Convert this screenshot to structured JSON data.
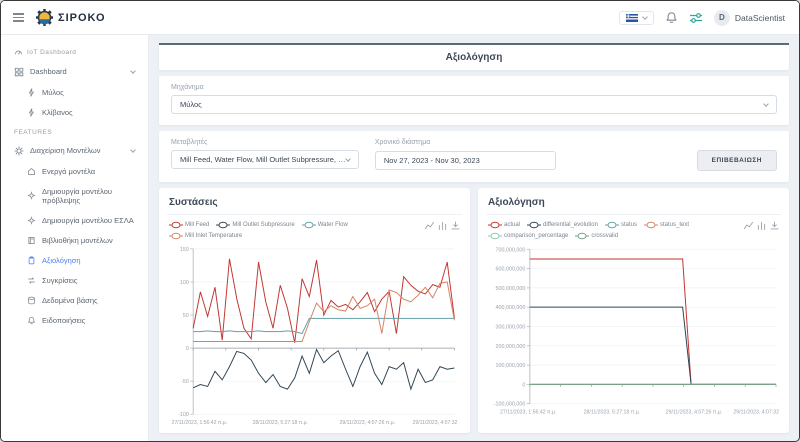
{
  "topbar": {
    "logo_text": "ΣΙΡΟΚΟ",
    "username": "DataScientist",
    "avatar_initial": "D"
  },
  "icons": {
    "topbar": [
      "menu-icon",
      "flag-icon",
      "chevron-down-icon",
      "bell-icon",
      "sliders-icon"
    ],
    "chart_toolbox": [
      "line-chart-icon",
      "bar-chart-icon",
      "download-icon"
    ]
  },
  "sidebar": {
    "section1": "IoT Dashboard",
    "dashboard_label": "Dashboard",
    "dashboard_children": [
      {
        "label": "Μύλος"
      },
      {
        "label": "Κλίβανος"
      }
    ],
    "section2": "FEATURES",
    "models_label": "Διαχείριση Μοντέλων",
    "model_children": [
      {
        "label": "Ενεργά μοντέλα"
      },
      {
        "label": "Δημιουργία μοντέλου πρόβλεψης"
      },
      {
        "label": "Δημιουργία μοντέλου ΕΣΛΑ"
      },
      {
        "label": "Βιβλιοθήκη μοντέλων"
      },
      {
        "label": "Αξιολόγηση"
      },
      {
        "label": "Συγκρίσεις"
      },
      {
        "label": "Δεδομένα βάσης"
      },
      {
        "label": "Ειδοποιήσεις"
      }
    ]
  },
  "form": {
    "title": "Αξιολόγηση",
    "machine_label": "Μηχάνημα",
    "machine_value": "Μύλος",
    "variables_label": "Μεταβλητές",
    "variables_value": "Mill Feed, Water Flow, Mill Outlet Subpressure, Mill Inlet Temperatu...",
    "period_label": "Χρονικό διάστημα",
    "period_value": "Nov 27, 2023 - Nov 30, 2023",
    "confirm_button": "ΕΠΙΒΕΒΑΙΩΣΗ"
  },
  "chart_data": [
    {
      "type": "line",
      "title": "Συστάσεις",
      "xlabel": "",
      "ylabel": "",
      "ylim": [
        -100,
        150
      ],
      "yticks": [
        150,
        100,
        50,
        0,
        -50,
        -100
      ],
      "grid": true,
      "legend_position": "top",
      "x_labels": [
        "27/11/2023, 1:56:42 π.μ.",
        "28/11/2023, 5:27:18 π.μ.",
        "29/11/2023, 4:07:26 π.μ.",
        "29/11/2023, 4:07:32"
      ],
      "series": [
        {
          "name": "Mill Feed",
          "color": "#c23531",
          "values": [
            30,
            85,
            48,
            92,
            12,
            135,
            75,
            30,
            14,
            130,
            70,
            30,
            95,
            60,
            8,
            105,
            78,
            133,
            50,
            72,
            62,
            66,
            58,
            70,
            84,
            55,
            74,
            86,
            22,
            108,
            95,
            86,
            82,
            96,
            92,
            130,
            45
          ]
        },
        {
          "name": "Mill Outlet Subpressure",
          "color": "#2f4554",
          "values": [
            -60,
            -55,
            -58,
            -35,
            -48,
            -28,
            -5,
            -8,
            -18,
            -38,
            -52,
            -40,
            -58,
            -62,
            -45,
            -12,
            -38,
            -2,
            -22,
            -12,
            -4,
            -32,
            -58,
            -28,
            -6,
            -38,
            -55,
            -28,
            -32,
            -22,
            -62,
            -32,
            -52,
            -48,
            -28,
            -32,
            -30
          ]
        },
        {
          "name": "Water Flow",
          "color": "#61a0a8",
          "values": [
            25,
            25,
            26,
            25,
            25,
            26,
            25,
            25,
            25,
            26,
            25,
            25,
            25,
            26,
            25,
            22,
            45,
            45,
            45,
            45,
            45,
            45,
            45,
            45,
            45,
            45,
            45,
            45,
            45,
            45,
            45,
            45,
            45,
            45,
            45,
            45,
            45
          ]
        },
        {
          "name": "Mill Inlet Temperature",
          "color": "#d48265",
          "values": [
            10,
            10,
            10,
            10,
            10,
            10,
            10,
            10,
            10,
            10,
            10,
            10,
            10,
            10,
            10,
            10,
            40,
            68,
            55,
            64,
            58,
            56,
            78,
            60,
            64,
            74,
            22,
            88,
            84,
            74,
            70,
            80,
            92,
            76,
            98,
            100,
            42
          ]
        }
      ]
    },
    {
      "type": "line",
      "title": "Αξιολόγηση",
      "xlabel": "",
      "ylabel": "",
      "ylim": [
        -100000000,
        700000000
      ],
      "yticks": [
        700000000,
        600000000,
        500000000,
        400000000,
        300000000,
        200000000,
        100000000,
        0,
        -100000000
      ],
      "grid": true,
      "legend_position": "top",
      "x_labels": [
        "27/11/2023, 1:56:42 π.μ.",
        "28/11/2023, 5:27:18 π.μ.",
        "29/11/2023, 4:07:26 π.μ.",
        "29/11/2023, 4:07:32"
      ],
      "series": [
        {
          "name": "actual",
          "color": "#c23531",
          "values": [
            650000000,
            650000000,
            650000000,
            650000000,
            650000000,
            650000000,
            650000000,
            650000000,
            650000000,
            650000000,
            650000000,
            650000000,
            650000000,
            650000000,
            650000000,
            650000000,
            650000000,
            650000000,
            650000000,
            0,
            0,
            0,
            0,
            0,
            0,
            0,
            0,
            0,
            0,
            0
          ]
        },
        {
          "name": "differential_evolution",
          "color": "#2f4554",
          "values": [
            400000000,
            400000000,
            400000000,
            400000000,
            400000000,
            400000000,
            400000000,
            400000000,
            400000000,
            400000000,
            400000000,
            400000000,
            400000000,
            400000000,
            400000000,
            400000000,
            400000000,
            400000000,
            400000000,
            0,
            0,
            0,
            0,
            0,
            0,
            0,
            0,
            0,
            0,
            0
          ]
        },
        {
          "name": "status",
          "color": "#61a0a8",
          "values": [
            0,
            0,
            0,
            0,
            0,
            0,
            0,
            0,
            0,
            0,
            0,
            0,
            0,
            0,
            0,
            0,
            0,
            0,
            0,
            0,
            0,
            0,
            0,
            0,
            0,
            0,
            0,
            0,
            0,
            0
          ]
        },
        {
          "name": "status_text",
          "color": "#d48265",
          "values": [
            0,
            0,
            0,
            0,
            0,
            0,
            0,
            0,
            0,
            0,
            0,
            0,
            0,
            0,
            0,
            0,
            0,
            0,
            0,
            0,
            0,
            0,
            0,
            0,
            0,
            0,
            0,
            0,
            0,
            0
          ]
        },
        {
          "name": "comparison_percentage",
          "color": "#91c7ae",
          "values": [
            0,
            0,
            0,
            0,
            0,
            0,
            0,
            0,
            0,
            0,
            0,
            0,
            0,
            0,
            0,
            0,
            0,
            0,
            0,
            0,
            0,
            0,
            0,
            0,
            0,
            0,
            0,
            0,
            0,
            0
          ]
        },
        {
          "name": "crossvalid",
          "color": "#749f83",
          "values": [
            0,
            0,
            0,
            0,
            0,
            0,
            0,
            0,
            0,
            0,
            0,
            0,
            0,
            0,
            0,
            0,
            0,
            0,
            0,
            0,
            0,
            0,
            0,
            0,
            0,
            0,
            0,
            0,
            0,
            0
          ]
        }
      ]
    }
  ]
}
